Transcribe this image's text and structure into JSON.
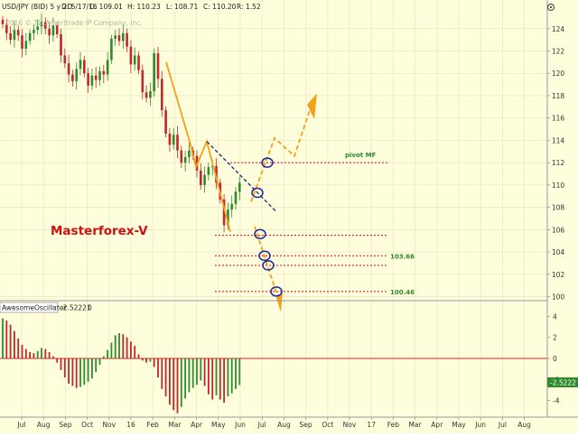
{
  "header": {
    "symbol": "USD/JPY (BID) 5 y 2D",
    "date": "D: 5/17/16",
    "open": "O: 109.01",
    "high": "H: 110.23",
    "low": "L: 108.71",
    "close": "C: 110.20",
    "range": "R: 1.52",
    "copyright": "2016 © TD Ameritrade IP Company, Inc."
  },
  "watermark": "Masterforex-V",
  "oscillator": {
    "name": "AwesomeOscillator",
    "value": "-2.52221",
    "zero_label": "0",
    "badge": "-2.5222"
  },
  "colors": {
    "background": "#fefedd",
    "candle_up": "#2e8b2e",
    "candle_down": "#c0282b",
    "level_line": "#d62728",
    "projection": "#f5a01a",
    "trend_dash": "#1f2a7a",
    "circle": "#1f2a9a",
    "watermark": "#cc1111",
    "label_green": "#2d8a2d"
  },
  "chart_data": [
    {
      "type": "candlestick",
      "title": "",
      "ylim": [
        99.8,
        125.6
      ],
      "y_ticks": [
        "124",
        "122",
        "120",
        "118",
        "116",
        "114",
        "112",
        "110",
        "108",
        "106",
        "104",
        "102",
        "100"
      ],
      "x_ticks": [
        "Jul",
        "Aug",
        "Sep",
        "Oct",
        "Nov",
        "16",
        "Feb",
        "Mar",
        "Apr",
        "May",
        "Jun",
        "Jul",
        "Aug",
        "Sep",
        "Oct",
        "Nov",
        "17",
        "Feb",
        "Mar",
        "Apr",
        "May",
        "Jun",
        "Jul",
        "Aug"
      ],
      "closes": [
        124.4,
        123.6,
        123.0,
        123.9,
        123.4,
        122.2,
        122.9,
        123.6,
        123.9,
        124.2,
        124.6,
        124.0,
        123.4,
        124.3,
        123.5,
        121.6,
        120.9,
        119.9,
        119.3,
        120.4,
        121.2,
        120.0,
        118.9,
        119.8,
        119.4,
        120.2,
        119.9,
        121.2,
        123.1,
        123.4,
        122.9,
        123.6,
        122.4,
        120.8,
        121.6,
        120.3,
        118.3,
        117.8,
        118.4,
        121.8,
        119.5,
        116.7,
        114.6,
        113.6,
        114.5,
        113.1,
        112.0,
        112.5,
        113.1,
        112.6,
        111.3,
        110.0,
        110.9,
        111.6,
        111.7,
        110.2,
        108.7,
        106.4,
        107.8,
        108.3,
        109.4,
        110.2
      ],
      "levels": [
        {
          "value": 112.0,
          "label": "pivot MF"
        },
        {
          "value": 105.5,
          "label": ""
        },
        {
          "value": 103.66,
          "label": "103.66"
        },
        {
          "value": 102.8,
          "label": ""
        },
        {
          "value": 100.46,
          "label": "100.46"
        }
      ]
    },
    {
      "type": "bar",
      "title": "AwesomeOscillator",
      "ylim": [
        -5.4,
        4.2
      ],
      "y_ticks": [
        "4",
        "2",
        "0",
        "-2",
        "-4"
      ],
      "values": [
        3.8,
        3.6,
        3.2,
        2.6,
        1.9,
        1.3,
        0.9,
        0.6,
        0.5,
        0.7,
        1.0,
        0.9,
        0.6,
        0.2,
        -0.4,
        -1.1,
        -1.8,
        -2.4,
        -2.6,
        -2.8,
        -2.7,
        -2.5,
        -2.2,
        -1.9,
        -1.3,
        -0.6,
        0.2,
        0.8,
        1.5,
        2.2,
        2.4,
        2.3,
        2.0,
        1.6,
        1.2,
        0.4,
        -0.2,
        -0.4,
        -0.3,
        -0.8,
        -1.8,
        -2.9,
        -3.6,
        -4.4,
        -4.9,
        -5.2,
        -4.6,
        -3.8,
        -3.2,
        -2.8,
        -2.5,
        -2.1,
        -2.6,
        -3.4,
        -3.9,
        -3.5,
        -3.9,
        -4.2,
        -3.6,
        -3.3,
        -2.9,
        -2.52
      ]
    }
  ]
}
